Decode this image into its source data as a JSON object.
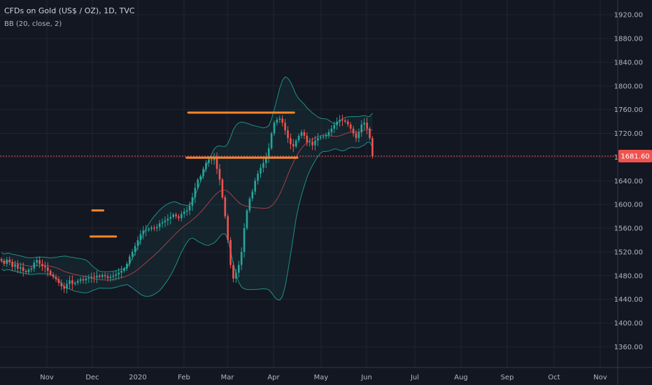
{
  "header": {
    "title": "CFDs on Gold (US$ / OZ), 1D, TVC",
    "indicator": "BB (20, close, 2)"
  },
  "price_label": {
    "value": "1681.60",
    "color": "#f0524f"
  },
  "colors": {
    "background": "#131722",
    "grid": "#1f2433",
    "up": "#26a69a",
    "down": "#ef5350",
    "band": "#1e8f85",
    "basis": "#a63f4a",
    "levels": "#f5862b"
  },
  "chart_data": {
    "type": "candlestick",
    "title": "CFDs on Gold (US$ / OZ), 1D, TVC",
    "indicator": "BB (20, close, 2)",
    "y_ticks": [
      1360,
      1400,
      1440,
      1480,
      1520,
      1560,
      1600,
      1640,
      1680,
      1720,
      1760,
      1800,
      1840,
      1880,
      1920
    ],
    "y_tick_labels": [
      "1360.00",
      "1400.00",
      "1440.00",
      "1480.00",
      "1520.00",
      "1560.00",
      "1600.00",
      "1640.00",
      "1680.00",
      "1720.00",
      "1760.00",
      "1800.00",
      "1840.00",
      "1880.00",
      "1920.00"
    ],
    "ylim": [
      1325,
      1945
    ],
    "x_tick_labels": [
      "Nov",
      "Dec",
      "2020",
      "Feb",
      "Mar",
      "Apr",
      "May",
      "Jun",
      "Jul",
      "Aug",
      "Sep",
      "Oct",
      "Nov"
    ],
    "last_price": 1681.6,
    "grid": true,
    "closes": [
      1505,
      1500,
      1507,
      1503,
      1495,
      1499,
      1492,
      1494,
      1488,
      1486,
      1490,
      1492,
      1502,
      1506,
      1500,
      1496,
      1494,
      1488,
      1482,
      1478,
      1474,
      1468,
      1462,
      1458,
      1466,
      1472,
      1466,
      1468,
      1471,
      1474,
      1472,
      1475,
      1476,
      1478,
      1477,
      1480,
      1478,
      1481,
      1479,
      1476,
      1478,
      1480,
      1482,
      1485,
      1488,
      1492,
      1500,
      1512,
      1520,
      1530,
      1540,
      1550,
      1556,
      1557,
      1559,
      1561,
      1560,
      1562,
      1568,
      1570,
      1573,
      1576,
      1579,
      1583,
      1580,
      1577,
      1584,
      1588,
      1590,
      1598,
      1612,
      1628,
      1642,
      1648,
      1660,
      1670,
      1676,
      1675,
      1680,
      1660,
      1642,
      1612,
      1580,
      1540,
      1498,
      1475,
      1485,
      1498,
      1520,
      1560,
      1590,
      1610,
      1622,
      1640,
      1652,
      1662,
      1670,
      1680,
      1695,
      1720,
      1738,
      1743,
      1745,
      1738,
      1725,
      1712,
      1702,
      1698,
      1708,
      1716,
      1722,
      1716,
      1705,
      1706,
      1700,
      1708,
      1712,
      1714,
      1715,
      1717,
      1722,
      1728,
      1734,
      1740,
      1743,
      1742,
      1740,
      1735,
      1728,
      1720,
      1712,
      1722,
      1735,
      1738,
      1728,
      1712,
      1681.6
    ],
    "levels": [
      {
        "from_x": 1.0,
        "to_x": 1.24,
        "price": 1590
      },
      {
        "from_x": 0.96,
        "to_x": 1.52,
        "price": 1546
      },
      {
        "from_x": 3.1,
        "to_x": 5.43,
        "price": 1755
      },
      {
        "from_x": 3.06,
        "to_x": 5.5,
        "price": 1679
      }
    ]
  }
}
